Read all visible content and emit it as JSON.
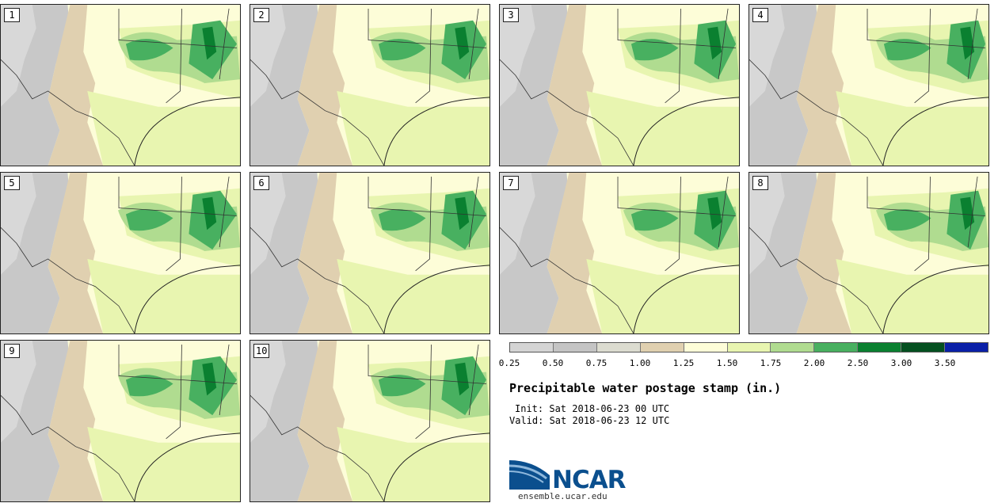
{
  "panels": [
    {
      "label": "1"
    },
    {
      "label": "2"
    },
    {
      "label": "3"
    },
    {
      "label": "4"
    },
    {
      "label": "5"
    },
    {
      "label": "6"
    },
    {
      "label": "7"
    },
    {
      "label": "8"
    },
    {
      "label": "9"
    },
    {
      "label": "10"
    }
  ],
  "colorbar": {
    "colors": [
      "#d4d4d4",
      "#c4c4c4",
      "#dcdcd0",
      "#e0d0b0",
      "#fdfdd8",
      "#e8f5b0",
      "#b0dc90",
      "#48b060",
      "#0a8030",
      "#045020",
      "#0a20a8"
    ],
    "ticks": [
      "0.25",
      "0.50",
      "0.75",
      "1.00",
      "1.25",
      "1.50",
      "1.75",
      "2.00",
      "2.50",
      "3.00",
      "3.50"
    ]
  },
  "title": "Precipitable water postage stamp (in.)",
  "init": "Init: Sat 2018-06-23 00 UTC",
  "valid": "Valid: Sat 2018-06-23 12 UTC",
  "logo": {
    "text": "NCAR",
    "color": "#0b4f8e"
  },
  "url": "ensemble.ucar.edu"
}
